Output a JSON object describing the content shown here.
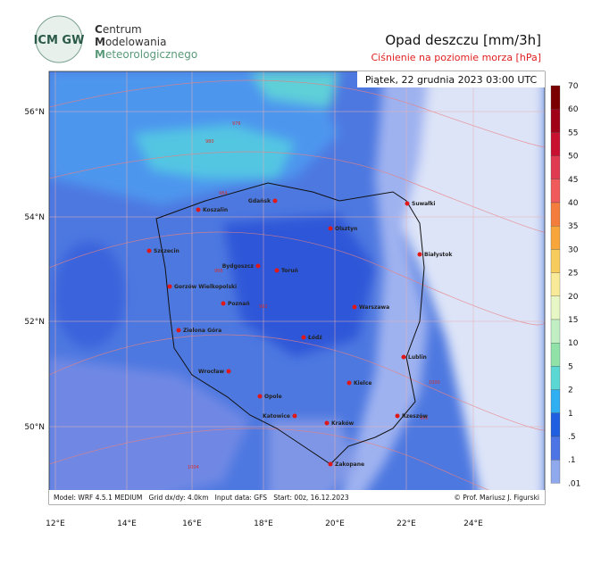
{
  "header": {
    "org": [
      "C",
      "entrum",
      "M",
      "odelowania",
      "M",
      "eteorologicznego"
    ],
    "logo": "ICM GW",
    "title": "Opad deszczu [mm/3h]",
    "subtitle": "Ciśnienie na poziomie morza [hPa]",
    "date": "Piątek, 22 grudnia 2023 03:00 UTC"
  },
  "map": {
    "lat_labels": [
      "56°N",
      "54°N",
      "52°N",
      "50°N"
    ],
    "lon_labels": [
      "12°E",
      "14°E",
      "16°E",
      "18°E",
      "20°E",
      "22°E",
      "24°E"
    ],
    "cities": [
      "Koszalin",
      "Gdańsk",
      "Suwałki",
      "Olsztyn",
      "Szczecin",
      "Białystok",
      "Bydgoszcz",
      "Toruń",
      "Gorzów Wielkopolski",
      "Poznań",
      "Warszawa",
      "Zielona Góra",
      "Łódź",
      "Lublin",
      "Wrocław",
      "Kielce",
      "Opole",
      "Katowice",
      "Kraków",
      "Rzeszów",
      "Zakopane"
    ],
    "isobars": [
      "976",
      "980",
      "984",
      "988",
      "992",
      "996",
      "1000",
      "1004"
    ]
  },
  "colorbar": {
    "labels": [
      "70",
      "60",
      "55",
      "50",
      "45",
      "40",
      "35",
      "30",
      "25",
      "20",
      "15",
      "10",
      "5",
      "2",
      "1",
      ".5",
      ".1",
      ".01"
    ],
    "colors": [
      "#7a0000",
      "#a00018",
      "#c81030",
      "#e03a50",
      "#f05a5a",
      "#f47c3c",
      "#f8a63c",
      "#f8cc5c",
      "#f8ea98",
      "#e6f6c4",
      "#c2eec4",
      "#90e2a8",
      "#5cd8d4",
      "#30aef2",
      "#2060e0",
      "#4c74e4",
      "#90a8ec"
    ]
  },
  "footer": {
    "model": "Model: WRF 4.5.1 MEDIUM   Grid dx/dy: 4.0km   Input data: GFS   Start: 00z, 16.12.2023",
    "credit": "© Prof. Mariusz J. Figurski"
  }
}
